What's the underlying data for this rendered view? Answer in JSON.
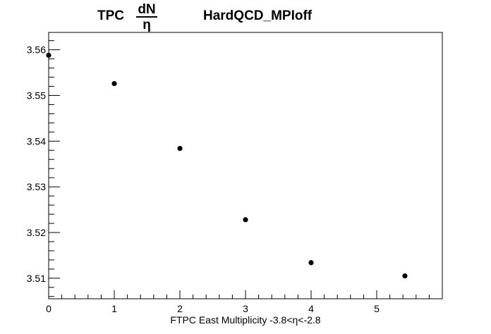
{
  "chart_data": {
    "type": "scatter",
    "title": {
      "prefix": "TPC",
      "fraction_numerator": "dN",
      "fraction_denominator": "η",
      "name": "HardQCD_MPIoff"
    },
    "xlabel": "FTPC East Multiplicity -3.8<η<-2.8",
    "ylabel": "",
    "xlim": [
      0,
      6
    ],
    "ylim": [
      3.5055,
      3.5638
    ],
    "x_ticks": [
      "0",
      "1",
      "2",
      "3",
      "4",
      "5"
    ],
    "y_ticks": [
      "3.51",
      "3.52",
      "3.53",
      "3.54",
      "3.55",
      "3.56"
    ],
    "grid": false,
    "legend": "none",
    "marker_color": "#000000",
    "series": [
      {
        "x": [
          0,
          1,
          2,
          3,
          4,
          5.43
        ],
        "y": [
          3.5588,
          3.5526,
          3.5384,
          3.5228,
          3.5134,
          3.5105
        ]
      }
    ]
  }
}
